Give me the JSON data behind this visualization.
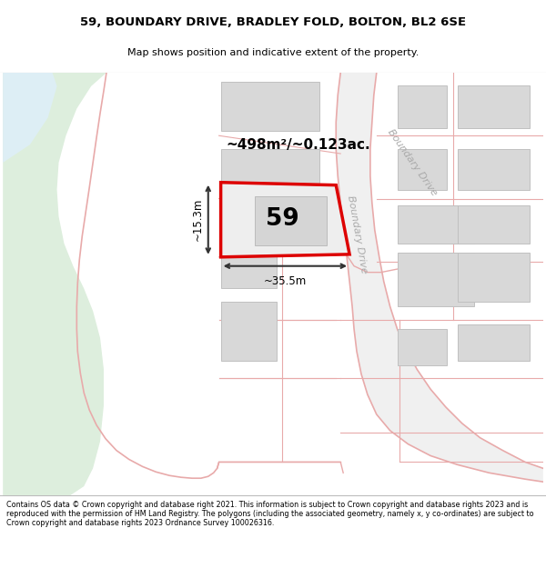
{
  "title_line1": "59, BOUNDARY DRIVE, BRADLEY FOLD, BOLTON, BL2 6SE",
  "title_line2": "Map shows position and indicative extent of the property.",
  "footer_text": "Contains OS data © Crown copyright and database right 2021. This information is subject to Crown copyright and database rights 2023 and is reproduced with the permission of HM Land Registry. The polygons (including the associated geometry, namely x, y co-ordinates) are subject to Crown copyright and database rights 2023 Ordnance Survey 100026316.",
  "plot_number": "59",
  "area_label": "~498m²/~0.123ac.",
  "width_label": "~35.5m",
  "height_label": "~15.3m",
  "bg_map_color": "#f5f5f5",
  "green_area_color": "#ddeedd",
  "blue_area_color": "#ddeef5",
  "road_fill_color": "#f0f0f0",
  "road_line_color": "#e8aaaa",
  "plot_fill_color": "#eeeeee",
  "plot_border_color": "#dd0000",
  "building_fill_color": "#d8d8d8",
  "building_edge_color": "#c0c0c0",
  "boundary_drive_label": "Boundary Drive",
  "dim_line_color": "#333333"
}
